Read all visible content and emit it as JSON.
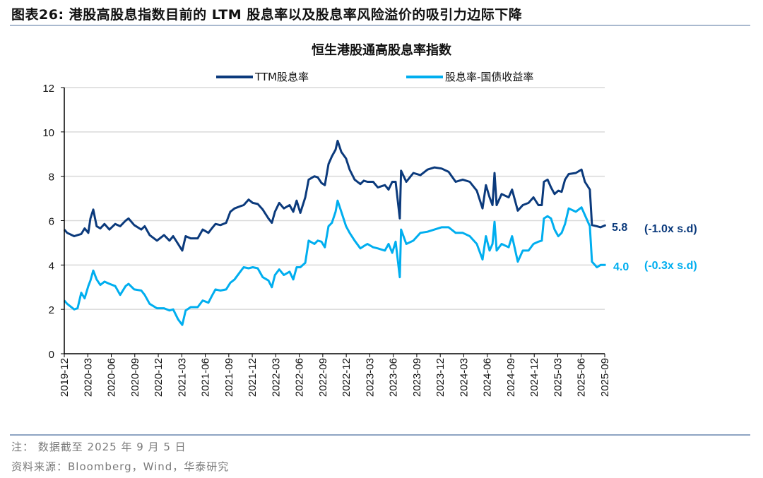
{
  "figure_title": "图表26:   港股高股息指数目前的 LTM 股息率以及股息率风险溢价的吸引力边际下降",
  "notes": {
    "note": "注： 数据截至 2025 年 9 月 5 日",
    "source": "资料来源：Bloomberg，Wind，华泰研究"
  },
  "chart_data": {
    "type": "line",
    "title": "恒生港股通高股息率指数",
    "xlabel": "",
    "ylabel": "",
    "ylim": [
      0,
      12
    ],
    "yticks": [
      "0",
      "2",
      "4",
      "6",
      "8",
      "10",
      "12"
    ],
    "xticks": [
      "2019-12",
      "2020-03",
      "2020-06",
      "2020-09",
      "2020-12",
      "2021-03",
      "2021-06",
      "2021-09",
      "2021-12",
      "2022-03",
      "2022-06",
      "2022-09",
      "2022-12",
      "2023-03",
      "2023-06",
      "2023-09",
      "2023-12",
      "2024-03",
      "2024-06",
      "2024-09",
      "2024-12",
      "2025-03",
      "2025-06",
      "2025-09"
    ],
    "grid": "horizontal",
    "legend_position": "top",
    "x": [
      "2019-12-01",
      "2019-12-12",
      "2020-01-09",
      "2020-01-22",
      "2020-02-06",
      "2020-02-19",
      "2020-03-03",
      "2020-03-11",
      "2020-03-22",
      "2020-04-05",
      "2020-04-19",
      "2020-05-05",
      "2020-05-24",
      "2020-06-16",
      "2020-07-05",
      "2020-07-26",
      "2020-08-07",
      "2020-08-29",
      "2020-09-26",
      "2020-10-09",
      "2020-10-28",
      "2020-11-26",
      "2020-12-23",
      "2021-01-14",
      "2021-01-28",
      "2021-02-17",
      "2021-03-03",
      "2021-03-16",
      "2021-04-05",
      "2021-05-02",
      "2021-05-21",
      "2021-06-13",
      "2021-06-26",
      "2021-07-10",
      "2021-07-29",
      "2021-08-21",
      "2021-09-07",
      "2021-09-23",
      "2021-10-15",
      "2021-10-28",
      "2021-11-17",
      "2021-12-03",
      "2021-12-22",
      "2022-01-11",
      "2022-02-03",
      "2022-02-16",
      "2022-02-28",
      "2022-03-14",
      "2022-04-02",
      "2022-04-24",
      "2022-05-08",
      "2022-05-21",
      "2022-06-05",
      "2022-06-24",
      "2022-07-07",
      "2022-07-29",
      "2022-08-12",
      "2022-08-26",
      "2022-09-09",
      "2022-09-23",
      "2022-10-06",
      "2022-10-20",
      "2022-10-28",
      "2022-11-12",
      "2022-11-30",
      "2022-12-14",
      "2023-01-03",
      "2023-01-25",
      "2023-02-08",
      "2023-02-22",
      "2023-03-14",
      "2023-04-02",
      "2023-04-29",
      "2023-05-13",
      "2023-05-27",
      "2023-06-10",
      "2023-06-26",
      "2023-07-01",
      "2023-07-21",
      "2023-08-18",
      "2023-09-15",
      "2023-10-12",
      "2023-11-09",
      "2023-12-06",
      "2024-01-03",
      "2024-01-30",
      "2024-02-27",
      "2024-03-24",
      "2024-04-21",
      "2024-05-13",
      "2024-05-26",
      "2024-06-10",
      "2024-06-21",
      "2024-06-29",
      "2024-07-07",
      "2024-07-26",
      "2024-08-23",
      "2024-09-06",
      "2024-09-28",
      "2024-10-17",
      "2024-11-09",
      "2024-11-28",
      "2024-12-17",
      "2024-12-30",
      "2025-01-08",
      "2025-01-22",
      "2025-02-05",
      "2025-02-19",
      "2025-03-03",
      "2025-03-16",
      "2025-03-29",
      "2025-04-13",
      "2025-05-10",
      "2025-06-02",
      "2025-06-15",
      "2025-07-04",
      "2025-07-12",
      "2025-08-01",
      "2025-08-15",
      "2025-09-05"
    ],
    "series": [
      {
        "name": "TTM股息率",
        "color": "#0b3a7c",
        "values": [
          5.6,
          5.45,
          5.3,
          5.35,
          5.4,
          5.65,
          5.45,
          6.1,
          6.5,
          5.75,
          5.65,
          5.85,
          5.6,
          5.85,
          5.75,
          6.0,
          6.1,
          5.8,
          5.6,
          5.75,
          5.35,
          5.1,
          5.35,
          5.1,
          5.3,
          4.95,
          4.65,
          5.3,
          5.2,
          5.2,
          5.6,
          5.45,
          5.65,
          5.85,
          5.8,
          5.9,
          6.4,
          6.55,
          6.65,
          6.7,
          6.95,
          6.8,
          6.75,
          6.5,
          6.1,
          5.9,
          6.4,
          6.8,
          6.55,
          6.7,
          6.4,
          6.9,
          6.35,
          7.05,
          7.85,
          8.0,
          7.95,
          7.7,
          7.6,
          8.55,
          8.9,
          9.2,
          9.6,
          9.1,
          8.8,
          8.3,
          7.85,
          7.65,
          7.8,
          7.75,
          7.75,
          7.5,
          7.6,
          7.4,
          7.75,
          7.75,
          6.1,
          8.25,
          7.75,
          8.15,
          8.05,
          8.3,
          8.4,
          8.35,
          8.2,
          7.75,
          7.85,
          7.75,
          7.35,
          6.55,
          7.6,
          7.05,
          6.7,
          8.15,
          6.7,
          7.2,
          7.05,
          7.4,
          6.45,
          6.7,
          6.8,
          7.05,
          6.7,
          6.7,
          7.75,
          7.85,
          7.5,
          7.2,
          7.35,
          7.3,
          7.85,
          8.1,
          8.15,
          8.3,
          7.75,
          7.4,
          5.8,
          5.75,
          5.7,
          5.8
        ],
        "last_label": "5.8",
        "sd_label": "(-1.0x s.d)"
      },
      {
        "name": "股息率-国债收益率",
        "color": "#00aeef",
        "values": [
          2.4,
          2.25,
          2.0,
          2.05,
          2.75,
          2.5,
          3.05,
          3.3,
          3.75,
          3.35,
          3.1,
          3.25,
          3.15,
          3.05,
          2.65,
          3.05,
          3.15,
          2.9,
          2.85,
          2.65,
          2.25,
          2.05,
          2.05,
          1.95,
          2.0,
          1.55,
          1.3,
          1.95,
          2.1,
          2.1,
          2.4,
          2.3,
          2.6,
          2.9,
          2.85,
          2.9,
          3.2,
          3.35,
          3.7,
          3.9,
          3.85,
          3.9,
          3.85,
          3.45,
          3.3,
          3.0,
          3.55,
          3.8,
          3.55,
          3.7,
          3.35,
          3.9,
          3.9,
          4.1,
          5.1,
          4.95,
          5.1,
          5.05,
          4.8,
          5.75,
          5.9,
          6.4,
          6.9,
          6.4,
          5.75,
          5.45,
          5.1,
          4.75,
          4.85,
          4.95,
          4.8,
          4.75,
          4.65,
          4.95,
          4.55,
          5.05,
          3.45,
          5.6,
          4.95,
          5.1,
          5.45,
          5.5,
          5.6,
          5.7,
          5.7,
          5.45,
          5.45,
          5.3,
          4.95,
          4.25,
          5.3,
          4.65,
          4.95,
          5.95,
          4.65,
          4.95,
          4.8,
          5.3,
          4.15,
          4.65,
          4.65,
          4.95,
          5.05,
          5.1,
          6.1,
          6.2,
          6.1,
          5.6,
          5.3,
          5.45,
          5.85,
          6.55,
          6.4,
          6.6,
          6.25,
          5.75,
          4.15,
          3.9,
          4.0,
          4.0
        ],
        "last_label": "4.0",
        "sd_label": "(-0.3x s.d)"
      }
    ]
  }
}
